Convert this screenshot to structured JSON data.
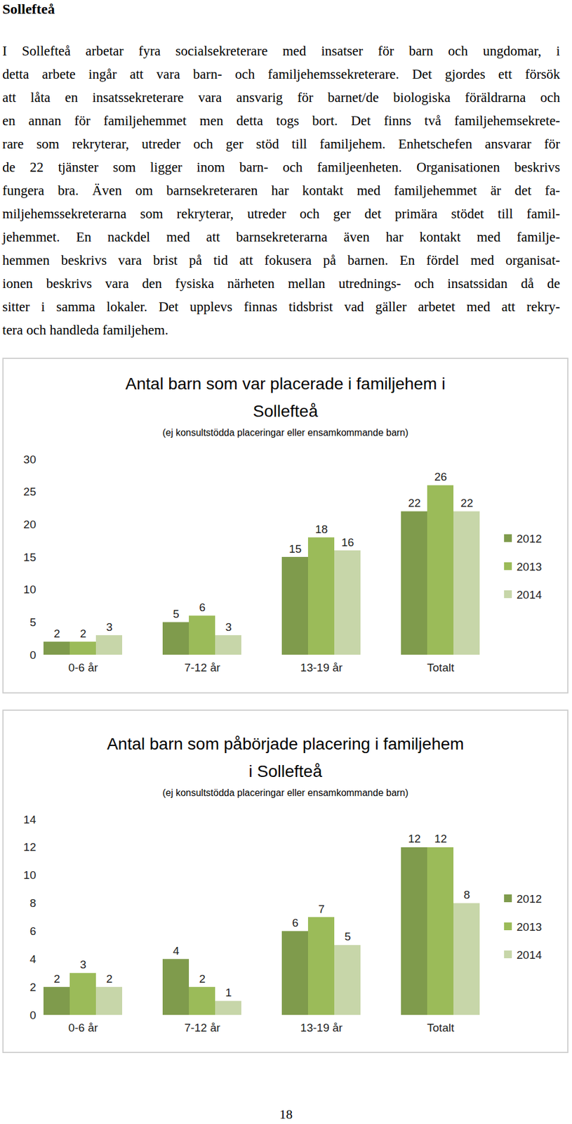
{
  "document": {
    "heading": "Sollefteå",
    "paragraph_lines": [
      "I Sollefteå arbetar fyra socialsekreterare med insatser för barn och ungdomar, i",
      "detta arbete ingår att vara barn- och familjehemssekreterare. Det gjordes ett försök",
      "att låta en insatssekreterare vara ansvarig för barnet/de biologiska föräldrarna och",
      "en annan för familjehemmet men detta togs bort. Det finns två familjehemsekrete-",
      "rare som rekryterar, utreder och ger stöd till familjehem. Enhetschefen ansvarar för",
      "de 22 tjänster som ligger inom barn- och familjeenheten. Organisationen beskrivs",
      "fungera bra. Även om barnsekreteraren har kontakt med familjehemmet är det fa-",
      "miljehemssekreterarna som rekryterar, utreder och ger det primära stödet till famil-",
      "jehemmet. En nackdel med att barnsekreterarna även har kontakt med familje-",
      "hemmen beskrivs vara brist på tid att fokusera på barnen. En fördel med organisat-",
      "ionen beskrivs vara den fysiska närheten mellan utrednings- och insatssidan då de",
      "sitter i samma lokaler. Det upplevs finnas tidsbrist vad gäller arbetet med att rekry-",
      "tera och handleda familjehem."
    ],
    "page_number": "18"
  },
  "chart_data": [
    {
      "type": "bar",
      "title": "Antal barn som var placerade i familjehem i\nSollefteå",
      "subtitle": "(ej konsultstödda placeringar eller ensamkommande barn)",
      "categories": [
        "0-6 år",
        "7-12 år",
        "13-19 år",
        "Totalt"
      ],
      "series": [
        {
          "name": "2012",
          "color": "#7f9b4c",
          "values": [
            2,
            5,
            15,
            22
          ]
        },
        {
          "name": "2013",
          "color": "#9bbb59",
          "values": [
            2,
            6,
            18,
            26
          ]
        },
        {
          "name": "2014",
          "color": "#c7d6a9",
          "values": [
            3,
            3,
            16,
            22
          ]
        }
      ],
      "ylim": [
        0,
        30
      ],
      "yticks": [
        0,
        5,
        10,
        15,
        20,
        25,
        30
      ],
      "grid": false,
      "data_labels": true,
      "legend": "right"
    },
    {
      "type": "bar",
      "title": "Antal barn som påbörjade placering i familjehem\ni Sollefteå",
      "subtitle": "(ej konsultstödda placeringar eller ensamkommande barn)",
      "categories": [
        "0-6 år",
        "7-12 år",
        "13-19 år",
        "Totalt"
      ],
      "series": [
        {
          "name": "2012",
          "color": "#7f9b4c",
          "values": [
            2,
            4,
            6,
            12
          ]
        },
        {
          "name": "2013",
          "color": "#9bbb59",
          "values": [
            3,
            2,
            7,
            12
          ]
        },
        {
          "name": "2014",
          "color": "#c7d6a9",
          "values": [
            2,
            1,
            5,
            8
          ]
        }
      ],
      "ylim": [
        0,
        14
      ],
      "yticks": [
        0,
        2,
        4,
        6,
        8,
        10,
        12,
        14
      ],
      "grid": false,
      "data_labels": true,
      "legend": "right"
    }
  ]
}
